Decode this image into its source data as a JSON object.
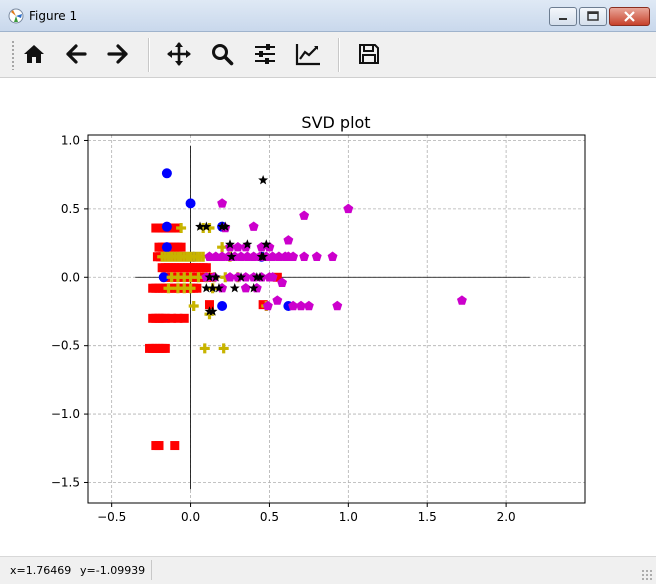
{
  "window": {
    "title": "Figure 1"
  },
  "toolbar": {
    "buttons": [
      {
        "name": "home-button",
        "icon": "home-icon"
      },
      {
        "name": "back-button",
        "icon": "arrow-left-icon"
      },
      {
        "name": "forward-button",
        "icon": "arrow-right-icon"
      },
      {
        "name": "pan-button",
        "icon": "move-icon"
      },
      {
        "name": "zoom-button",
        "icon": "magnifier-icon"
      },
      {
        "name": "subplots-button",
        "icon": "sliders-icon"
      },
      {
        "name": "edit-axis-button",
        "icon": "line-chart-icon"
      },
      {
        "name": "save-button",
        "icon": "floppy-disk-icon"
      }
    ]
  },
  "status": {
    "x_readout": "x=1.76469",
    "y_readout": "y=-1.09939"
  },
  "chart_data": {
    "type": "scatter",
    "title": "SVD plot",
    "xlabel": "",
    "ylabel": "",
    "xlim": [
      -0.65,
      2.5
    ],
    "ylim": [
      -1.65,
      1.04
    ],
    "xticks": [
      -0.5,
      0.0,
      0.5,
      1.0,
      1.5,
      2.0
    ],
    "xtick_labels": [
      "−0.5",
      "0.0",
      "0.5",
      "1.0",
      "1.5",
      "2.0"
    ],
    "yticks": [
      -1.5,
      -1.0,
      -0.5,
      0.0,
      0.5,
      1.0
    ],
    "ytick_labels": [
      "−1.5",
      "−1.0",
      "−0.5",
      "0.0",
      "0.5",
      "1.0"
    ],
    "grid": true,
    "grid_style": "dashed",
    "reference_lines": {
      "horizontal": {
        "y": 0.0,
        "x_from": -0.35,
        "x_to": 2.15
      },
      "vertical": {
        "x": 0.0,
        "y_from": -1.55,
        "y_to": 0.96
      }
    },
    "series": [
      {
        "marker": "square",
        "color": "#ff0000",
        "points": [
          [
            -0.22,
            0.36
          ],
          [
            -0.2,
            0.36
          ],
          [
            -0.18,
            0.36
          ],
          [
            -0.16,
            0.36
          ],
          [
            -0.14,
            0.36
          ],
          [
            -0.12,
            0.36
          ],
          [
            -0.1,
            0.36
          ],
          [
            -0.08,
            0.36
          ],
          [
            -0.2,
            0.22
          ],
          [
            -0.18,
            0.22
          ],
          [
            -0.16,
            0.22
          ],
          [
            -0.14,
            0.22
          ],
          [
            -0.12,
            0.22
          ],
          [
            -0.1,
            0.22
          ],
          [
            -0.08,
            0.22
          ],
          [
            -0.06,
            0.22
          ],
          [
            -0.21,
            0.15
          ],
          [
            -0.19,
            0.15
          ],
          [
            -0.17,
            0.15
          ],
          [
            -0.15,
            0.15
          ],
          [
            -0.13,
            0.15
          ],
          [
            -0.11,
            0.15
          ],
          [
            -0.09,
            0.15
          ],
          [
            -0.07,
            0.15
          ],
          [
            -0.05,
            0.15
          ],
          [
            -0.03,
            0.15
          ],
          [
            -0.01,
            0.15
          ],
          [
            0.01,
            0.15
          ],
          [
            -0.16,
            0.0
          ],
          [
            -0.14,
            0.0
          ],
          [
            -0.12,
            0.0
          ],
          [
            -0.1,
            0.0
          ],
          [
            -0.08,
            0.0
          ],
          [
            -0.06,
            0.0
          ],
          [
            -0.04,
            0.0
          ],
          [
            -0.02,
            0.0
          ],
          [
            0.0,
            0.0
          ],
          [
            0.02,
            0.0
          ],
          [
            0.04,
            0.0
          ],
          [
            0.06,
            0.0
          ],
          [
            0.08,
            0.0
          ],
          [
            0.1,
            0.0
          ],
          [
            0.12,
            0.0
          ],
          [
            -0.18,
            0.07
          ],
          [
            -0.16,
            0.07
          ],
          [
            -0.14,
            0.07
          ],
          [
            -0.12,
            0.07
          ],
          [
            -0.1,
            0.07
          ],
          [
            -0.08,
            0.07
          ],
          [
            -0.06,
            0.07
          ],
          [
            -0.04,
            0.07
          ],
          [
            -0.02,
            0.07
          ],
          [
            0.0,
            0.07
          ],
          [
            0.02,
            0.07
          ],
          [
            0.04,
            0.07
          ],
          [
            0.06,
            0.07
          ],
          [
            0.08,
            0.07
          ],
          [
            0.1,
            0.07
          ],
          [
            -0.24,
            -0.08
          ],
          [
            -0.22,
            -0.08
          ],
          [
            -0.2,
            -0.08
          ],
          [
            -0.18,
            -0.08
          ],
          [
            -0.16,
            -0.08
          ],
          [
            -0.14,
            -0.08
          ],
          [
            -0.12,
            -0.08
          ],
          [
            -0.1,
            -0.08
          ],
          [
            -0.08,
            -0.08
          ],
          [
            -0.06,
            -0.08
          ],
          [
            -0.04,
            -0.08
          ],
          [
            -0.02,
            -0.08
          ],
          [
            0.0,
            -0.08
          ],
          [
            0.02,
            -0.08
          ],
          [
            0.04,
            -0.08
          ],
          [
            -0.24,
            -0.3
          ],
          [
            -0.22,
            -0.3
          ],
          [
            -0.2,
            -0.3
          ],
          [
            -0.18,
            -0.3
          ],
          [
            -0.16,
            -0.3
          ],
          [
            -0.12,
            -0.3
          ],
          [
            -0.08,
            -0.3
          ],
          [
            -0.04,
            -0.3
          ],
          [
            -0.26,
            -0.52
          ],
          [
            -0.24,
            -0.52
          ],
          [
            -0.22,
            -0.52
          ],
          [
            -0.2,
            -0.52
          ],
          [
            -0.18,
            -0.52
          ],
          [
            -0.16,
            -0.52
          ],
          [
            -0.22,
            -1.23
          ],
          [
            -0.2,
            -1.23
          ],
          [
            -0.1,
            -1.23
          ],
          [
            0.12,
            -0.2
          ],
          [
            0.46,
            -0.2
          ],
          [
            0.55,
            0.0
          ]
        ]
      },
      {
        "marker": "circle",
        "color": "#0000ff",
        "points": [
          [
            -0.15,
            0.76
          ],
          [
            0.0,
            0.54
          ],
          [
            -0.15,
            0.37
          ],
          [
            -0.15,
            0.22
          ],
          [
            0.2,
            0.37
          ],
          [
            -0.17,
            0.0
          ],
          [
            0.2,
            -0.21
          ],
          [
            0.45,
            0.15
          ],
          [
            0.62,
            -0.21
          ],
          [
            0.02,
            0.15
          ]
        ]
      },
      {
        "marker": "plus",
        "color": "#c8b400",
        "points": [
          [
            -0.18,
            0.15
          ],
          [
            -0.16,
            0.15
          ],
          [
            -0.14,
            0.15
          ],
          [
            -0.12,
            0.15
          ],
          [
            -0.1,
            0.15
          ],
          [
            -0.08,
            0.15
          ],
          [
            -0.06,
            0.15
          ],
          [
            -0.04,
            0.15
          ],
          [
            -0.02,
            0.15
          ],
          [
            0.0,
            0.15
          ],
          [
            0.02,
            0.15
          ],
          [
            0.04,
            0.15
          ],
          [
            0.06,
            0.15
          ],
          [
            0.08,
            0.15
          ],
          [
            -0.06,
            0.36
          ],
          [
            0.08,
            0.36
          ],
          [
            0.12,
            0.36
          ],
          [
            -0.12,
            0.0
          ],
          [
            -0.08,
            0.0
          ],
          [
            -0.04,
            0.0
          ],
          [
            0.0,
            0.0
          ],
          [
            0.05,
            0.0
          ],
          [
            0.1,
            0.0
          ],
          [
            0.15,
            0.0
          ],
          [
            0.22,
            0.0
          ],
          [
            0.3,
            0.0
          ],
          [
            -0.14,
            -0.08
          ],
          [
            -0.08,
            -0.08
          ],
          [
            -0.04,
            -0.08
          ],
          [
            0.0,
            -0.08
          ],
          [
            0.14,
            -0.08
          ],
          [
            0.2,
            0.22
          ],
          [
            0.25,
            0.15
          ],
          [
            0.02,
            -0.21
          ],
          [
            0.12,
            -0.27
          ],
          [
            0.48,
            -0.21
          ],
          [
            0.09,
            -0.52
          ],
          [
            0.21,
            -0.52
          ]
        ]
      },
      {
        "marker": "pentagon",
        "color": "#cc00cc",
        "points": [
          [
            0.2,
            0.54
          ],
          [
            0.72,
            0.45
          ],
          [
            1.0,
            0.5
          ],
          [
            0.62,
            0.27
          ],
          [
            0.4,
            0.37
          ],
          [
            0.22,
            0.36
          ],
          [
            0.12,
            0.15
          ],
          [
            0.16,
            0.15
          ],
          [
            0.2,
            0.15
          ],
          [
            0.24,
            0.15
          ],
          [
            0.28,
            0.15
          ],
          [
            0.32,
            0.15
          ],
          [
            0.36,
            0.15
          ],
          [
            0.4,
            0.15
          ],
          [
            0.44,
            0.15
          ],
          [
            0.48,
            0.15
          ],
          [
            0.52,
            0.15
          ],
          [
            0.56,
            0.15
          ],
          [
            0.6,
            0.15
          ],
          [
            0.62,
            0.15
          ],
          [
            0.65,
            0.15
          ],
          [
            0.72,
            0.15
          ],
          [
            0.8,
            0.15
          ],
          [
            0.9,
            0.15
          ],
          [
            0.25,
            0.22
          ],
          [
            0.3,
            0.22
          ],
          [
            0.35,
            0.22
          ],
          [
            0.45,
            0.22
          ],
          [
            0.5,
            0.22
          ],
          [
            0.15,
            0.0
          ],
          [
            0.25,
            0.0
          ],
          [
            0.3,
            0.0
          ],
          [
            0.35,
            0.0
          ],
          [
            0.4,
            0.0
          ],
          [
            0.45,
            0.0
          ],
          [
            0.5,
            0.0
          ],
          [
            0.52,
            0.0
          ],
          [
            0.58,
            -0.04
          ],
          [
            0.55,
            -0.17
          ],
          [
            0.65,
            -0.21
          ],
          [
            0.7,
            -0.21
          ],
          [
            0.75,
            -0.21
          ],
          [
            0.93,
            -0.21
          ],
          [
            0.49,
            -0.21
          ],
          [
            1.72,
            -0.17
          ],
          [
            0.2,
            -0.08
          ],
          [
            0.35,
            -0.08
          ],
          [
            0.42,
            -0.08
          ],
          [
            0.1,
            0.0
          ]
        ]
      },
      {
        "marker": "star",
        "color": "#000000",
        "points": [
          [
            0.46,
            0.71
          ],
          [
            0.06,
            0.37
          ],
          [
            0.1,
            0.37
          ],
          [
            0.2,
            0.37
          ],
          [
            0.22,
            0.37
          ],
          [
            0.25,
            0.24
          ],
          [
            0.36,
            0.24
          ],
          [
            0.48,
            0.24
          ],
          [
            0.26,
            0.15
          ],
          [
            0.45,
            0.15
          ],
          [
            0.46,
            0.15
          ],
          [
            0.12,
            0.0
          ],
          [
            0.16,
            0.0
          ],
          [
            0.32,
            0.0
          ],
          [
            0.42,
            0.0
          ],
          [
            0.44,
            0.0
          ],
          [
            0.1,
            -0.08
          ],
          [
            0.14,
            -0.08
          ],
          [
            0.18,
            -0.08
          ],
          [
            0.28,
            -0.08
          ],
          [
            0.4,
            -0.08
          ],
          [
            0.12,
            -0.25
          ],
          [
            0.14,
            -0.25
          ]
        ]
      }
    ]
  }
}
